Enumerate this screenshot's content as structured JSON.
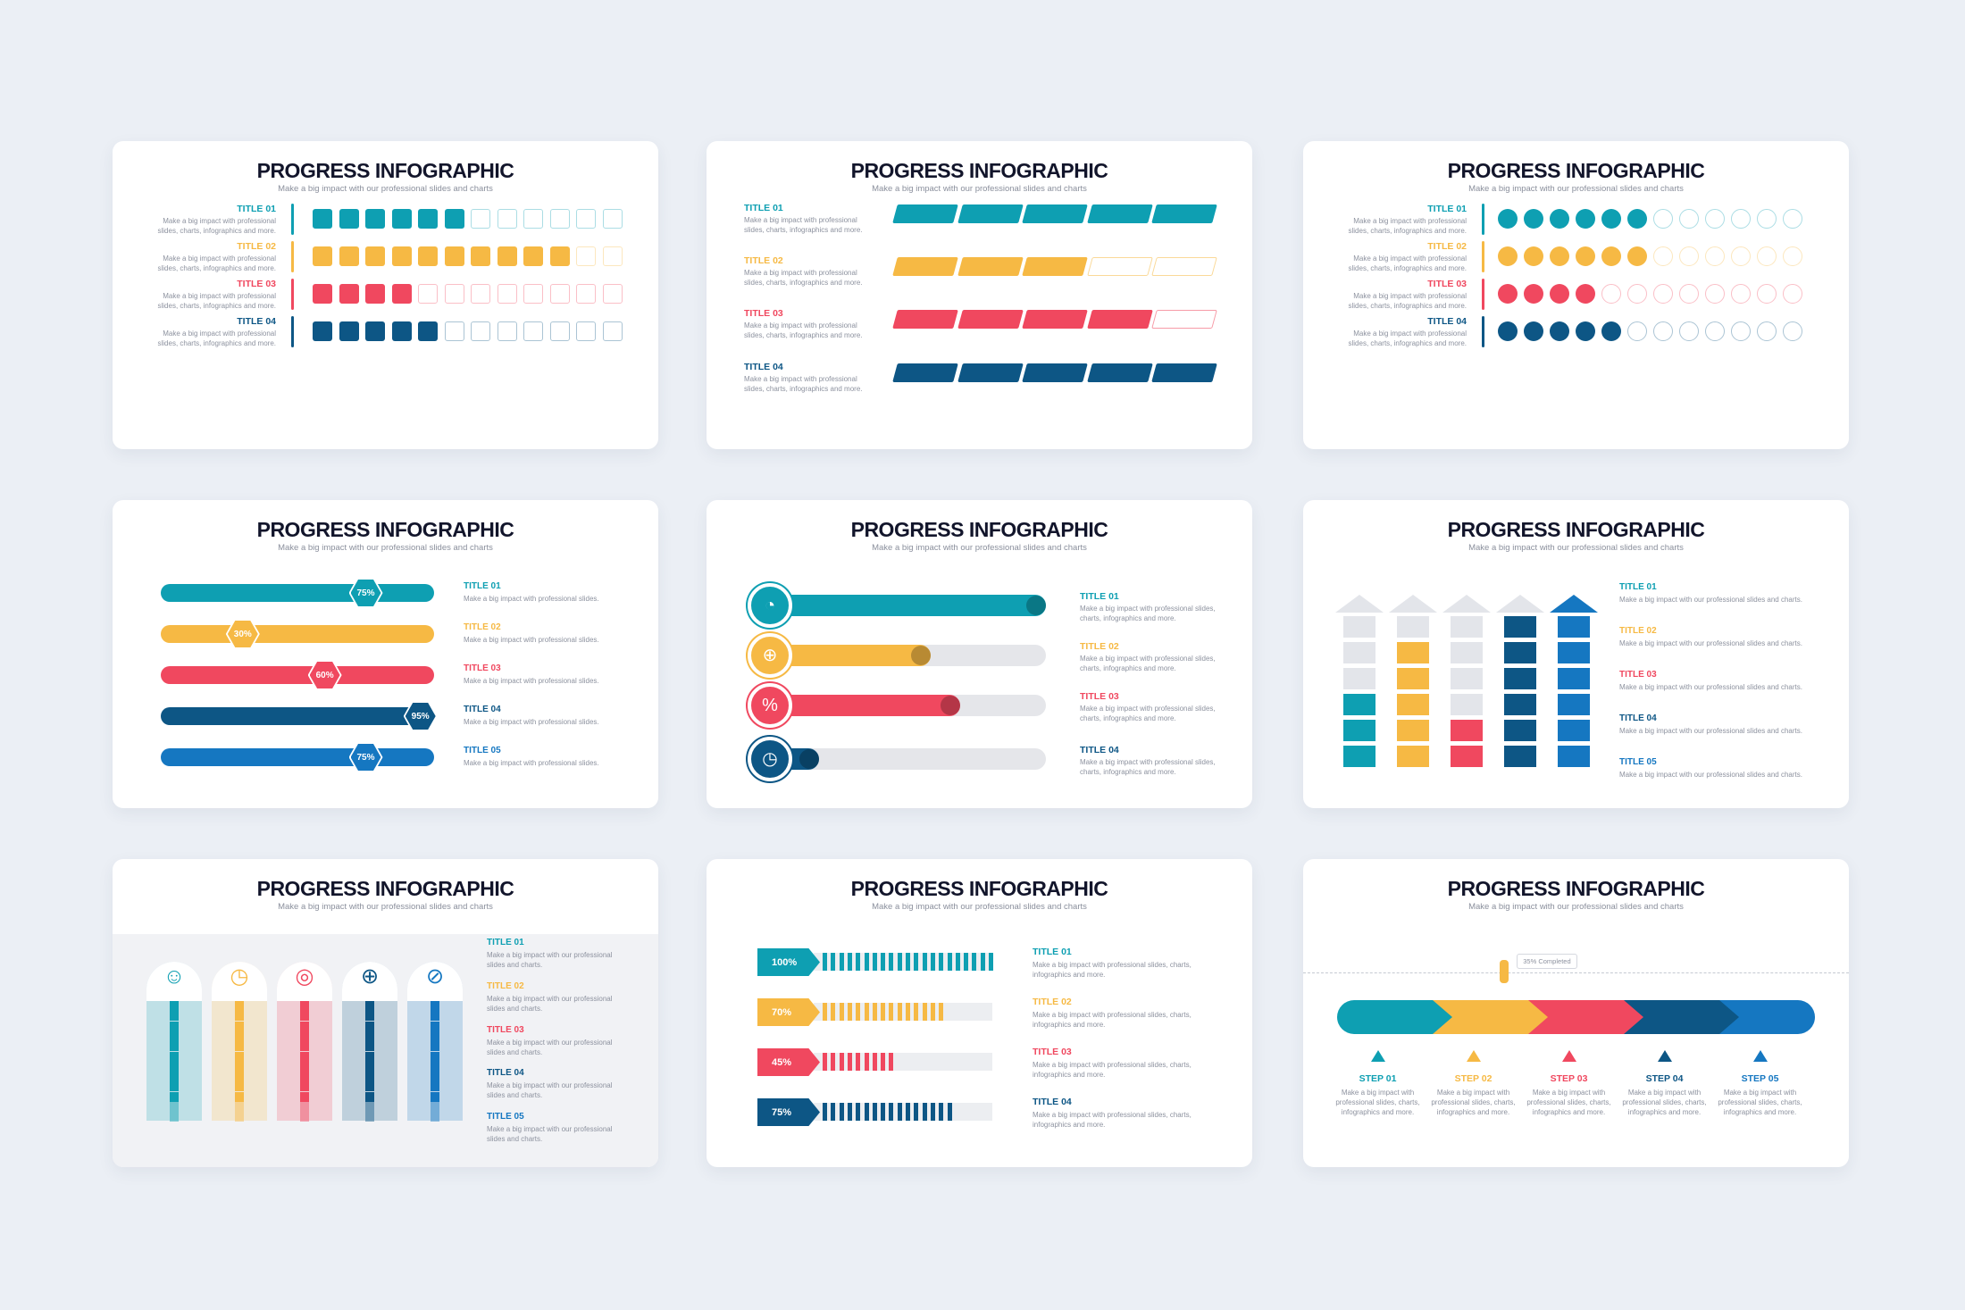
{
  "slide_title": "PROGRESS INFOGRAPHIC",
  "slide_subtitle": "Make a big impact with our professional slides and charts",
  "colors": {
    "teal": "#0e9fb2",
    "yellow": "#f6b944",
    "red": "#f0485f",
    "navy": "#0d5685",
    "blue": "#1577c1",
    "light_bg": "#eef1f6"
  },
  "titles": [
    "TITLE 01",
    "TITLE 02",
    "TITLE 03",
    "TITLE 04",
    "TITLE 05"
  ],
  "steps": [
    "STEP 01",
    "STEP 02",
    "STEP 03",
    "STEP 04",
    "STEP 05"
  ],
  "desc_short": "Make a big impact with professional slides.",
  "desc_pro": "Make a big impact with professional slides, charts, infographics and more.",
  "desc_our_lines": [
    "Make a big impact with our professional",
    "slides and charts."
  ],
  "desc_our_one": "Make a big impact with our professional slides and charts.",
  "desc_step": "Make a big impact with professional slides, charts, infographics and more.",
  "slide1": {
    "filled": [
      6,
      10,
      4,
      5
    ],
    "total": 12
  },
  "slide2": {
    "filled": [
      5,
      3,
      4,
      5
    ],
    "total": 5
  },
  "slide3": {
    "filled": [
      6,
      6,
      4,
      5
    ],
    "total": 12
  },
  "slide4": {
    "percents": [
      "75%",
      "30%",
      "60%",
      "95%",
      "75%"
    ],
    "values": [
      0.75,
      0.3,
      0.6,
      0.95,
      0.75
    ]
  },
  "slide5": {
    "values": [
      1.0,
      0.61,
      0.71,
      0.23
    ],
    "icons": [
      "chart-pie-icon",
      "globe-icon",
      "percent-icon",
      "clock-icon"
    ]
  },
  "slide6": {
    "filled_cells": [
      3,
      5,
      2,
      6,
      6
    ],
    "total_cells": 6
  },
  "slide7": {
    "icons": [
      "team-icon",
      "clock-icon",
      "target-icon",
      "globe-icon",
      "compass-icon"
    ],
    "values": [
      0.86,
      0.8,
      0.83,
      0.83,
      0.87
    ]
  },
  "slide8": {
    "percents": [
      "100%",
      "70%",
      "45%",
      "75%"
    ],
    "values": [
      1.0,
      0.7,
      0.45,
      0.75
    ]
  },
  "slide9": {
    "completed_label": "35% Completed",
    "completed": 0.35
  }
}
